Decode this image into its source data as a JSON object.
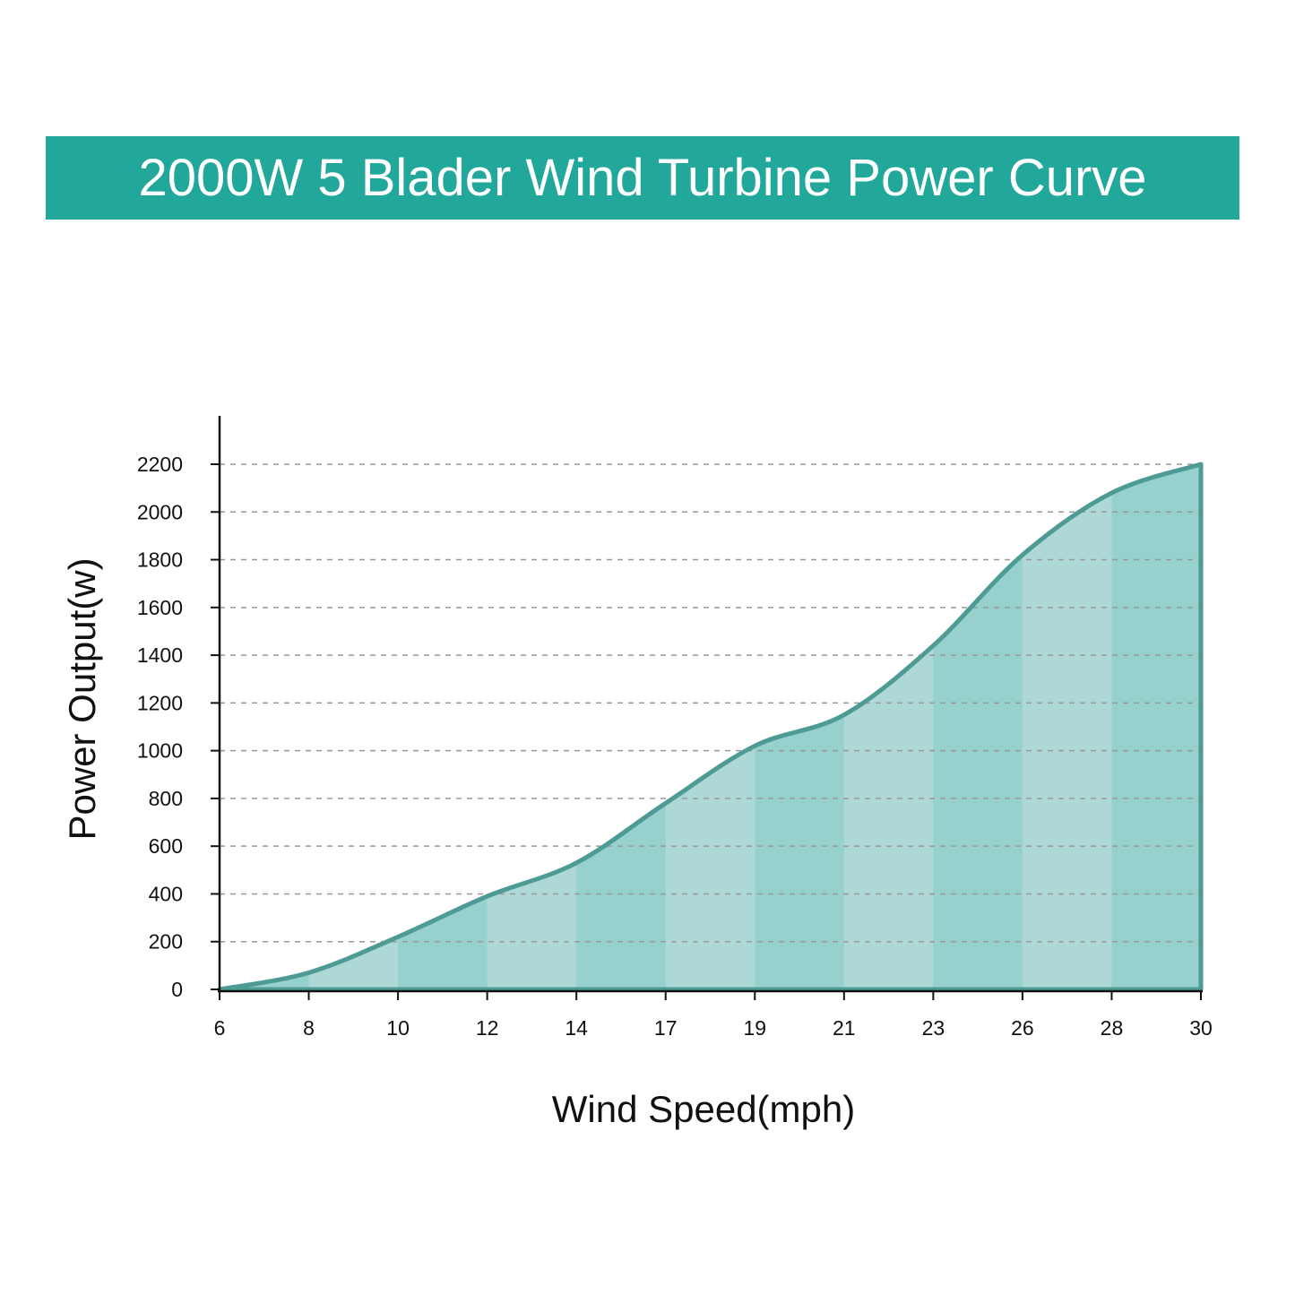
{
  "title": "2000W 5 Blader Wind Turbine Power Curve",
  "colors": {
    "banner": "#22a89a",
    "line": "#4e9b95",
    "fill_light": "#aed8d6",
    "fill_dark": "#96d1cd",
    "grid": "#999999",
    "axis": "#111111"
  },
  "chart_data": {
    "type": "area",
    "title": "",
    "xlabel": "Wind Speed(mph)",
    "ylabel": "Power Output(w)",
    "categories": [
      "6",
      "8",
      "10",
      "12",
      "14",
      "17",
      "19",
      "21",
      "23",
      "26",
      "28",
      "30"
    ],
    "x_ticks": [
      "6",
      "8",
      "10",
      "12",
      "14",
      "17",
      "19",
      "21",
      "23",
      "26",
      "28",
      "30"
    ],
    "y_ticks": [
      0,
      200,
      400,
      600,
      800,
      1000,
      1200,
      1400,
      1600,
      1800,
      2000,
      2200
    ],
    "ylim": [
      0,
      2200
    ],
    "grid": "horizontal dashed",
    "series": [
      {
        "values": [
          0,
          70,
          220,
          390,
          530,
          780,
          1020,
          1150,
          1440,
          1820,
          2080,
          2200
        ]
      }
    ]
  }
}
